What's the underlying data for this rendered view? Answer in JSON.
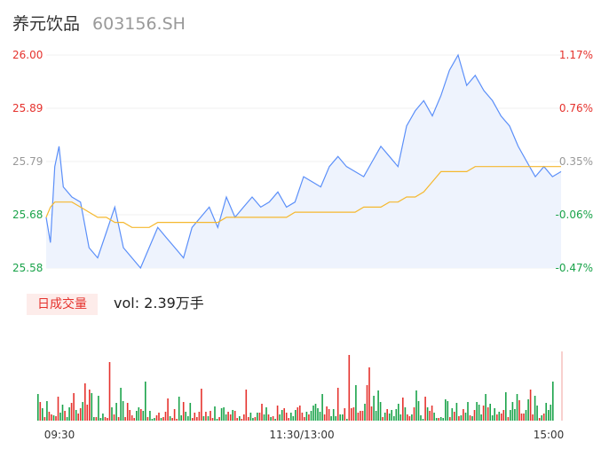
{
  "header": {
    "stock_name": "养元饮品",
    "stock_code": "603156.SH"
  },
  "volume_panel": {
    "badge_label": "日成交量",
    "vol_text": "vol: 2.39万手"
  },
  "colors": {
    "up": "#e5322d",
    "down": "#1aa34a",
    "flat": "#999999",
    "price_line": "#5b8ff9",
    "avg_line": "#f5b82e",
    "area_fill": "#eef3fd"
  },
  "chart_data": [
    {
      "type": "line",
      "title": "",
      "xlabel": "",
      "ylabel": "",
      "x_ticks": [
        "09:30",
        "11:30/13:00",
        "15:00"
      ],
      "y_ticks_left": [
        "26.00",
        "25.89",
        "25.79",
        "25.68",
        "25.58"
      ],
      "y_ticks_right": [
        "1.17%",
        "0.76%",
        "0.35%",
        "-0.06%",
        "-0.47%"
      ],
      "ylim": [
        25.58,
        26.0
      ],
      "prev_close": 25.7,
      "x": [
        0,
        2,
        4,
        6,
        8,
        12,
        16,
        20,
        24,
        28,
        32,
        36,
        40,
        44,
        48,
        52,
        56,
        60,
        64,
        68,
        72,
        76,
        80,
        84,
        88,
        92,
        96,
        100,
        104,
        108,
        112,
        116,
        120,
        124,
        128,
        132,
        136,
        140,
        144,
        148,
        152,
        156,
        160,
        164,
        168,
        172,
        176,
        180,
        184,
        188,
        192,
        196,
        200,
        204,
        208,
        212,
        216,
        220,
        224,
        228,
        232,
        236,
        240
      ],
      "series": [
        {
          "values": [
            25.68,
            25.63,
            25.78,
            25.82,
            25.74,
            25.72,
            25.71,
            25.62,
            25.6,
            25.65,
            25.7,
            25.62,
            25.6,
            25.58,
            25.62,
            25.66,
            25.64,
            25.62,
            25.6,
            25.66,
            25.68,
            25.7,
            25.66,
            25.72,
            25.68,
            25.7,
            25.72,
            25.7,
            25.71,
            25.73,
            25.7,
            25.71,
            25.76,
            25.75,
            25.74,
            25.78,
            25.8,
            25.78,
            25.77,
            25.76,
            25.79,
            25.82,
            25.8,
            25.78,
            25.86,
            25.89,
            25.91,
            25.88,
            25.92,
            25.97,
            26.0,
            25.94,
            25.96,
            25.93,
            25.91,
            25.88,
            25.86,
            25.82,
            25.79,
            25.76,
            25.78,
            25.76,
            25.77
          ]
        },
        {
          "values": [
            25.68,
            25.7,
            25.71,
            25.71,
            25.71,
            25.71,
            25.7,
            25.69,
            25.68,
            25.68,
            25.67,
            25.67,
            25.66,
            25.66,
            25.66,
            25.67,
            25.67,
            25.67,
            25.67,
            25.67,
            25.67,
            25.67,
            25.67,
            25.68,
            25.68,
            25.68,
            25.68,
            25.68,
            25.68,
            25.68,
            25.68,
            25.69,
            25.69,
            25.69,
            25.69,
            25.69,
            25.69,
            25.69,
            25.69,
            25.7,
            25.7,
            25.7,
            25.71,
            25.71,
            25.72,
            25.72,
            25.73,
            25.75,
            25.77,
            25.77,
            25.77,
            25.77,
            25.78,
            25.78,
            25.78,
            25.78,
            25.78,
            25.78,
            25.78,
            25.78,
            25.78,
            25.78,
            25.78
          ]
        }
      ]
    },
    {
      "type": "bar",
      "title": "",
      "xlabel": "",
      "ylabel": "",
      "ylim": [
        0,
        100
      ],
      "values": [
        30,
        21,
        14,
        4,
        22,
        10,
        7,
        6,
        5,
        27,
        9,
        18,
        11,
        4,
        15,
        20,
        31,
        12,
        8,
        14,
        21,
        42,
        18,
        35,
        31,
        4,
        4,
        28,
        3,
        8,
        4,
        3,
        66,
        15,
        7,
        20,
        4,
        37,
        22,
        4,
        20,
        12,
        6,
        3,
        11,
        15,
        13,
        11,
        44,
        4,
        11,
        2,
        3,
        6,
        9,
        3,
        4,
        10,
        25,
        5,
        3,
        13,
        2,
        27,
        6,
        21,
        10,
        5,
        20,
        3,
        9,
        4,
        10,
        36,
        5,
        10,
        5,
        11,
        3,
        16,
        2,
        4,
        14,
        15,
        7,
        10,
        7,
        12,
        11,
        3,
        5,
        2,
        7,
        35,
        4,
        9,
        3,
        4,
        9,
        9,
        19,
        7,
        15,
        7,
        4,
        5,
        2,
        17,
        7,
        12,
        14,
        9,
        3,
        9,
        5,
        12,
        15,
        17,
        9,
        4,
        10,
        7,
        11,
        17,
        19,
        14,
        10,
        30,
        7,
        16,
        13,
        5,
        13,
        5,
        37,
        7,
        7,
        14,
        2,
        74,
        14,
        15,
        40,
        9,
        11,
        11,
        19,
        40,
        60,
        16,
        28,
        11,
        34,
        21,
        4,
        9,
        13,
        8,
        12,
        5,
        13,
        19,
        7,
        26,
        15,
        7,
        5,
        7,
        15,
        34,
        22,
        6,
        2,
        27,
        15,
        11,
        17,
        9,
        3,
        3,
        4,
        3,
        24,
        22,
        4,
        14,
        10,
        20,
        5,
        6,
        13,
        9,
        21,
        6,
        5,
        12,
        21,
        18,
        7,
        17,
        30,
        15,
        19,
        6,
        14,
        7,
        10,
        8,
        12,
        32,
        4,
        12,
        21,
        13,
        30,
        23,
        8,
        8,
        12,
        24,
        35,
        7,
        28,
        17,
        3,
        6,
        8,
        20,
        12,
        18,
        44
      ],
      "up": [
        false,
        true,
        false,
        true,
        false,
        true,
        true,
        false,
        true,
        true,
        false,
        false,
        true,
        false,
        false,
        true,
        true,
        false,
        true,
        true,
        false,
        true,
        true,
        true,
        false,
        false,
        true,
        false,
        false,
        false,
        true,
        true,
        true,
        false,
        true,
        false,
        true,
        false,
        false,
        true,
        true,
        true,
        true,
        true,
        false,
        false,
        true,
        false,
        false,
        true,
        false,
        false,
        false,
        true,
        true,
        false,
        true,
        true,
        true,
        false,
        true,
        true,
        true,
        false,
        false,
        true,
        false,
        false,
        false,
        true,
        true,
        true,
        true,
        true,
        false,
        true,
        false,
        true,
        true,
        false,
        false,
        true,
        false,
        false,
        false,
        true,
        true,
        false,
        true,
        true,
        false,
        true,
        true,
        true,
        true,
        false,
        false,
        true,
        false,
        true,
        true,
        false,
        false,
        true,
        false,
        true,
        false,
        true,
        false,
        false,
        true,
        true,
        true,
        false,
        false,
        false,
        true,
        true,
        true,
        true,
        false,
        true,
        false,
        false,
        false,
        false,
        false,
        false,
        true,
        true,
        true,
        false,
        false,
        false,
        true,
        false,
        false,
        true,
        false,
        true,
        true,
        true,
        false,
        true,
        true,
        true,
        false,
        true,
        true,
        true,
        false,
        false,
        false,
        false,
        true,
        false,
        true,
        false,
        false,
        false,
        false,
        false,
        false,
        true,
        false,
        true,
        true,
        false,
        true,
        false,
        false,
        false,
        false,
        true,
        false,
        true,
        true,
        false,
        false,
        true,
        false,
        false,
        false,
        false,
        true,
        false,
        true,
        false,
        true,
        false,
        true,
        false,
        false,
        true,
        false,
        true,
        false,
        false,
        false,
        true,
        false,
        true,
        false,
        false,
        false,
        true,
        false,
        true,
        true,
        false,
        true,
        false,
        false,
        false,
        false,
        true,
        true,
        true,
        false,
        false,
        true,
        true,
        false,
        false,
        true,
        false,
        true,
        false,
        false
      ]
    }
  ]
}
